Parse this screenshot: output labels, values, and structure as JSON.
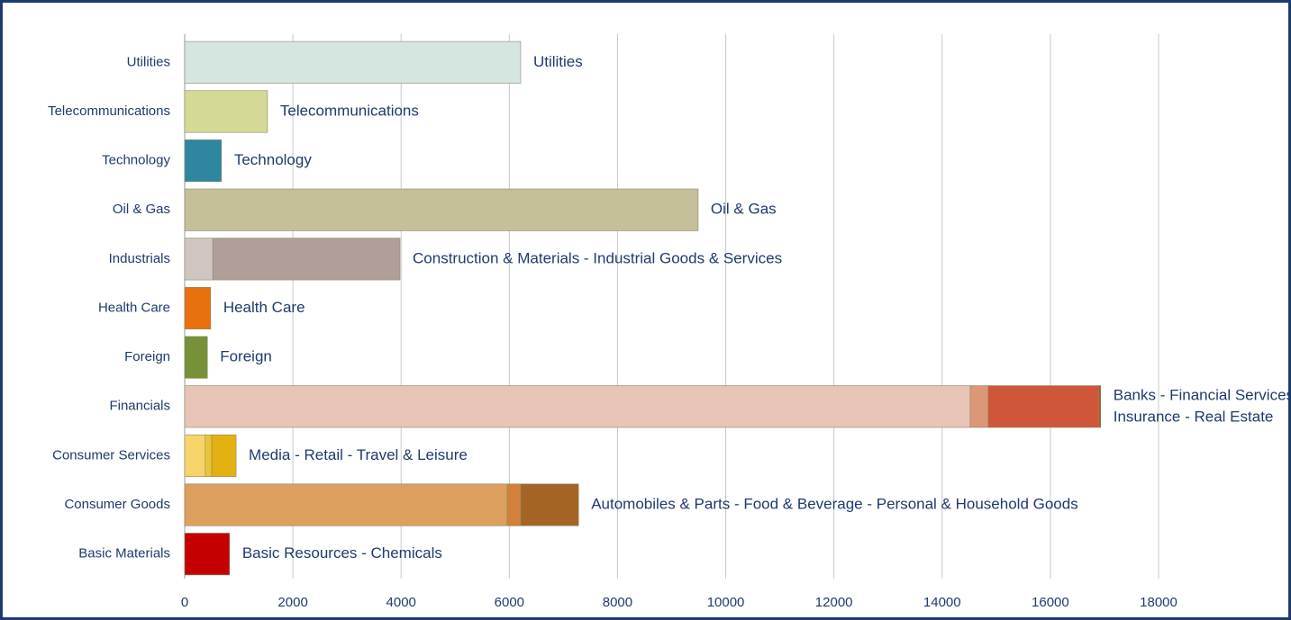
{
  "chart_data": {
    "type": "stacked-bar-horizontal",
    "categories": [
      "Utilities",
      "Telecommunications",
      "Technology",
      "Oil & Gas",
      "Industrials",
      "Health Care",
      "Foreign",
      "Financials",
      "Consumer Services",
      "Consumer Goods",
      "Basic Materials"
    ],
    "segments": [
      [
        6210
      ],
      [
        1530
      ],
      [
        680
      ],
      [
        9490
      ],
      [
        520,
        3460
      ],
      [
        480
      ],
      [
        420
      ],
      [
        14520,
        330,
        2050,
        30
      ],
      [
        380,
        120,
        450
      ],
      [
        5960,
        250,
        1070
      ],
      [
        830
      ]
    ],
    "colors": [
      [
        "#d4e6df"
      ],
      [
        "#d4d996"
      ],
      [
        "#2f879f"
      ],
      [
        "#c5bf9a"
      ],
      [
        "#d0c6c1",
        "#b19e99"
      ],
      [
        "#e8700f"
      ],
      [
        "#769137"
      ],
      [
        "#e8c4b6",
        "#dc9678",
        "#cf5639",
        "#a5541f"
      ],
      [
        "#f7d46a",
        "#edc436",
        "#e3b111"
      ],
      [
        "#dd9f5d",
        "#d2803a",
        "#a46425"
      ],
      [
        "#c40000"
      ]
    ],
    "annotations": [
      [
        "Utilities"
      ],
      [
        "Telecommunications"
      ],
      [
        "Technology"
      ],
      [
        "Oil & Gas"
      ],
      [
        "Construction & Materials - Industrial Goods & Services"
      ],
      [
        "Health Care"
      ],
      [
        "Foreign"
      ],
      [
        "Banks - Financial Services",
        "Insurance - Real Estate"
      ],
      [
        "Media - Retail - Travel & Leisure"
      ],
      [
        "Automobiles & Parts - Food & Beverage  - Personal & Household Goods"
      ],
      [
        "Basic Resources - Chemicals"
      ]
    ],
    "xlim": [
      0,
      18000
    ],
    "xticks": [
      0,
      2000,
      4000,
      6000,
      8000,
      10000,
      12000,
      14000,
      16000,
      18000
    ],
    "grid": true
  }
}
